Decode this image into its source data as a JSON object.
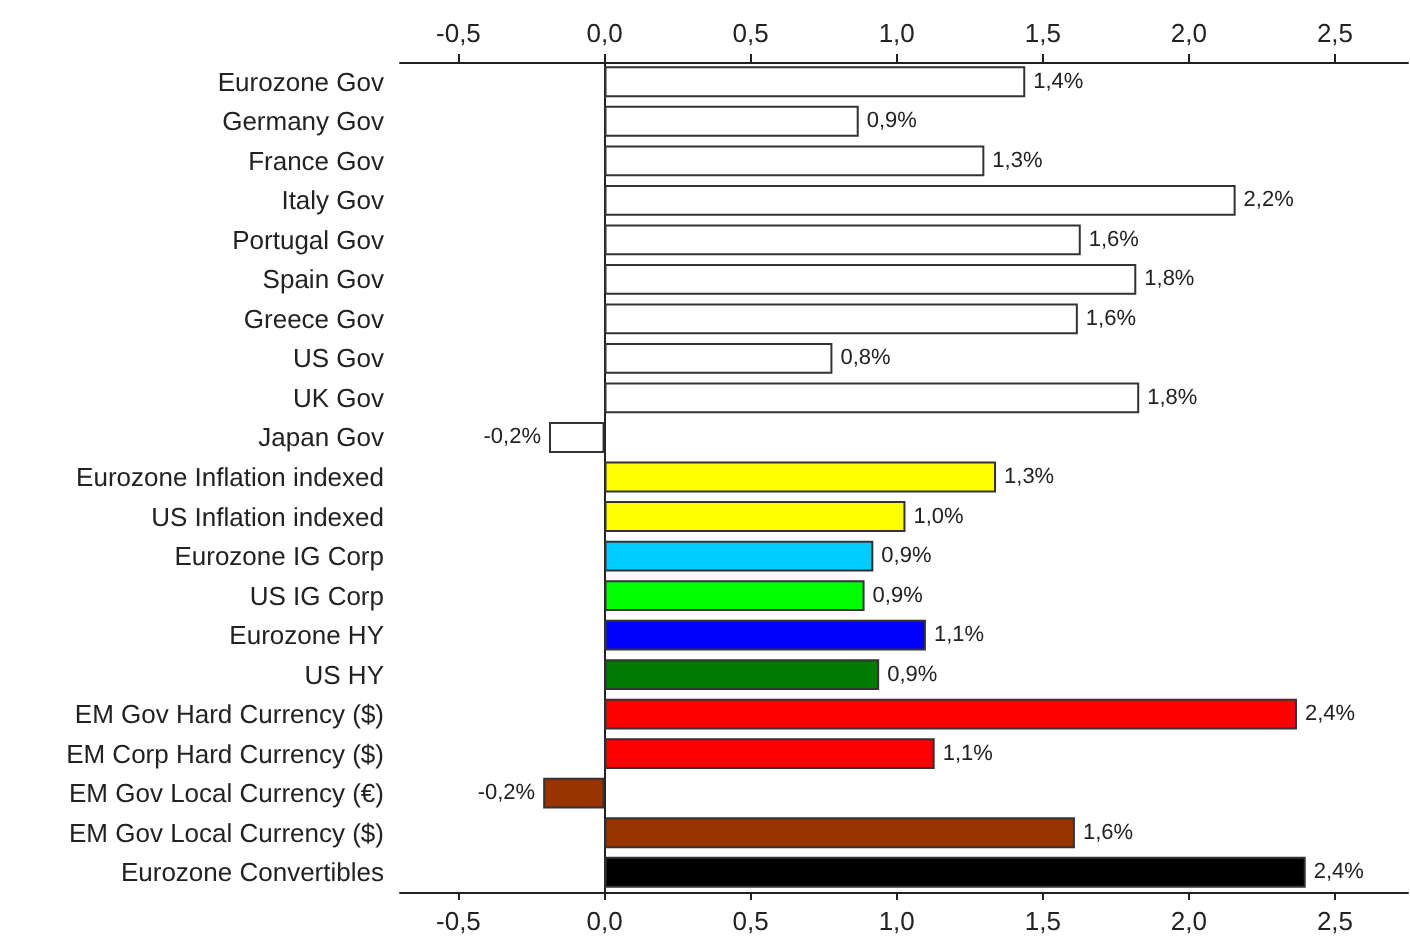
{
  "chart_data": {
    "type": "bar",
    "orientation": "horizontal",
    "categories": [
      "Eurozone Gov",
      "Germany Gov",
      "France Gov",
      "Italy Gov",
      "Portugal Gov",
      "Spain Gov",
      "Greece Gov",
      "US Gov",
      "UK Gov",
      "Japan Gov",
      "Eurozone Inflation indexed",
      "US Inflation indexed",
      "Eurozone IG Corp",
      "US IG Corp",
      "Eurozone HY",
      "US HY",
      "EM Gov Hard Currency ($)",
      "EM Corp Hard Currency ($)",
      "EM Gov Local Currency (€)",
      "EM Gov Local Currency ($)",
      "Eurozone Convertibles"
    ],
    "values": [
      1.44,
      0.87,
      1.3,
      2.16,
      1.63,
      1.82,
      1.62,
      0.78,
      1.83,
      -0.19,
      1.34,
      1.03,
      0.92,
      0.89,
      1.1,
      0.94,
      2.37,
      1.13,
      -0.21,
      1.61,
      2.4
    ],
    "colors": [
      "#ffffff",
      "#ffffff",
      "#ffffff",
      "#ffffff",
      "#ffffff",
      "#ffffff",
      "#ffffff",
      "#ffffff",
      "#ffffff",
      "#ffffff",
      "#ffff00",
      "#ffff00",
      "#00ccff",
      "#00ff00",
      "#0000ff",
      "#007a00",
      "#ff0000",
      "#ff0000",
      "#993300",
      "#993300",
      "#000000"
    ],
    "value_labels": [
      "1,4%",
      "0,9%",
      "1,3%",
      "2,2%",
      "1,6%",
      "1,8%",
      "1,6%",
      "0,8%",
      "1,8%",
      "-0,2%",
      "1,3%",
      "1,0%",
      "0,9%",
      "0,9%",
      "1,1%",
      "0,9%",
      "2,4%",
      "1,1%",
      "-0,2%",
      "1,6%",
      "2,4%"
    ],
    "xlim": [
      -0.7,
      2.75
    ],
    "xticks": [
      {
        "value": -0.5,
        "label": "-0,5"
      },
      {
        "value": 0,
        "label": "0,0"
      },
      {
        "value": 0.5,
        "label": "0,5"
      },
      {
        "value": 1,
        "label": "1,0"
      },
      {
        "value": 1.5,
        "label": "1,5"
      },
      {
        "value": 2,
        "label": "2,0"
      },
      {
        "value": 2.5,
        "label": "2,5"
      }
    ],
    "x2lim": [
      -0.7,
      2.75
    ],
    "x2ticks": [
      {
        "value": -0.5,
        "label": "-0,5"
      },
      {
        "value": 0,
        "label": "0,0"
      },
      {
        "value": 0.5,
        "label": "0,5"
      },
      {
        "value": 1,
        "label": "1,0"
      },
      {
        "value": 1.5,
        "label": "1,5"
      },
      {
        "value": 2,
        "label": "2,0"
      },
      {
        "value": 2.5,
        "label": "2,5"
      }
    ],
    "tick_labels": "xy"
  }
}
